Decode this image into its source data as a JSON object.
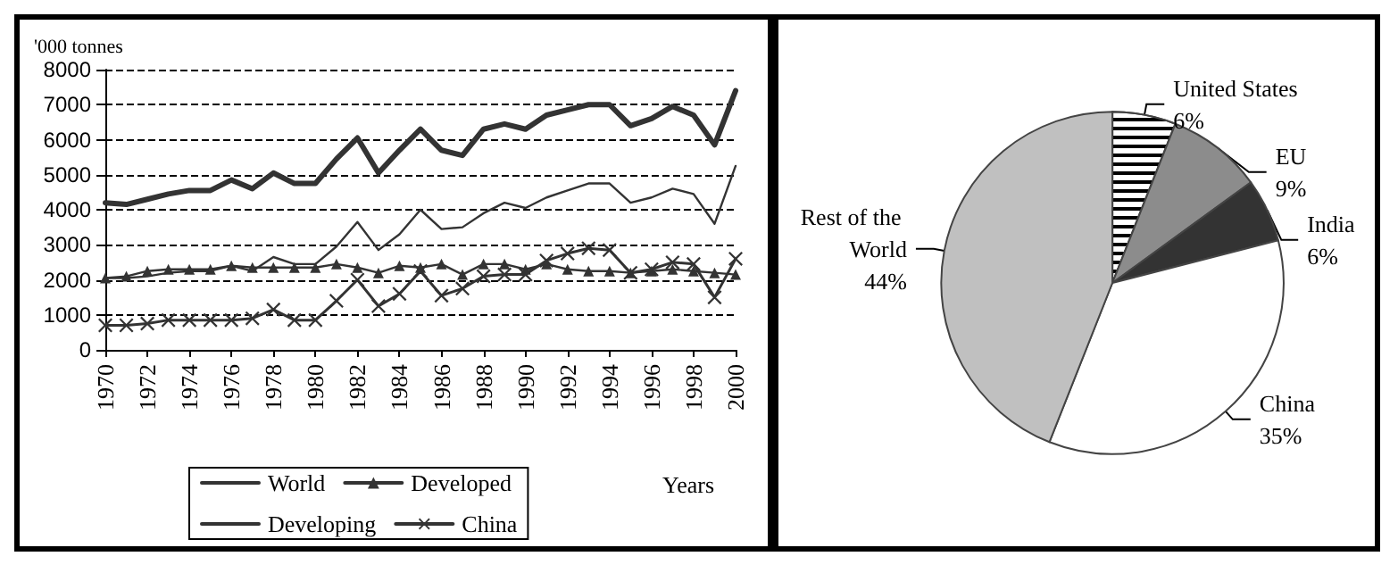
{
  "chart_data": [
    {
      "type": "line",
      "ylabel": "'000 tonnes",
      "xlabel": "Years",
      "x": [
        1970,
        1971,
        1972,
        1973,
        1974,
        1975,
        1976,
        1977,
        1978,
        1979,
        1980,
        1981,
        1982,
        1983,
        1984,
        1985,
        1986,
        1987,
        1988,
        1989,
        1990,
        1991,
        1992,
        1993,
        1994,
        1995,
        1996,
        1997,
        1998,
        1999,
        2000
      ],
      "series": [
        {
          "name": "World",
          "color": "#333333",
          "marker": "none",
          "values": [
            4200,
            4150,
            4300,
            4450,
            4550,
            4550,
            4850,
            4600,
            5050,
            4750,
            4750,
            5450,
            6050,
            5050,
            5700,
            6300,
            5700,
            5550,
            6300,
            6450,
            6300,
            6700,
            6850,
            7000,
            7000,
            6400,
            6600,
            6950,
            6700,
            5850,
            7400
          ]
        },
        {
          "name": "Developed",
          "color": "#333333",
          "marker": "triangle",
          "values": [
            2050,
            2100,
            2250,
            2300,
            2300,
            2300,
            2400,
            2350,
            2350,
            2350,
            2350,
            2450,
            2350,
            2200,
            2400,
            2350,
            2450,
            2150,
            2450,
            2450,
            2300,
            2450,
            2300,
            2250,
            2250,
            2200,
            2250,
            2300,
            2250,
            2200,
            2150
          ]
        },
        {
          "name": "Developing",
          "color": "#333333",
          "marker": "none",
          "values": [
            2050,
            2050,
            2100,
            2200,
            2250,
            2250,
            2400,
            2250,
            2650,
            2450,
            2450,
            2950,
            3650,
            2850,
            3300,
            4000,
            3450,
            3500,
            3900,
            4200,
            4050,
            4350,
            4550,
            4750,
            4750,
            4200,
            4350,
            4600,
            4450,
            3600,
            5250
          ]
        },
        {
          "name": "China",
          "color": "#333333",
          "marker": "cross",
          "values": [
            700,
            700,
            750,
            850,
            850,
            850,
            850,
            900,
            1150,
            850,
            850,
            1400,
            2000,
            1250,
            1600,
            2250,
            1550,
            1750,
            2100,
            2150,
            2150,
            2550,
            2750,
            2900,
            2850,
            2200,
            2300,
            2500,
            2450,
            1500,
            2600
          ]
        }
      ],
      "xlim": [
        1970,
        2000
      ],
      "xticks": [
        1970,
        1972,
        1974,
        1976,
        1978,
        1980,
        1982,
        1984,
        1986,
        1988,
        1990,
        1992,
        1994,
        1996,
        1998,
        2000
      ],
      "ylim": [
        0,
        8000
      ],
      "yticks": [
        0,
        1000,
        2000,
        3000,
        4000,
        5000,
        6000,
        7000,
        8000
      ],
      "grid": "y",
      "legend": "bottom"
    },
    {
      "type": "pie",
      "categories": [
        "United States",
        "EU",
        "India",
        "China",
        "Rest of the World"
      ],
      "values": [
        6,
        9,
        6,
        35,
        44
      ],
      "colors": [
        "#ffffff",
        "#8c8c8c",
        "#333333",
        "#ffffff",
        "#c0c0c0"
      ],
      "value_labels": [
        "6%",
        "9%",
        "6%",
        "35%",
        "44%"
      ],
      "legend": false
    }
  ]
}
